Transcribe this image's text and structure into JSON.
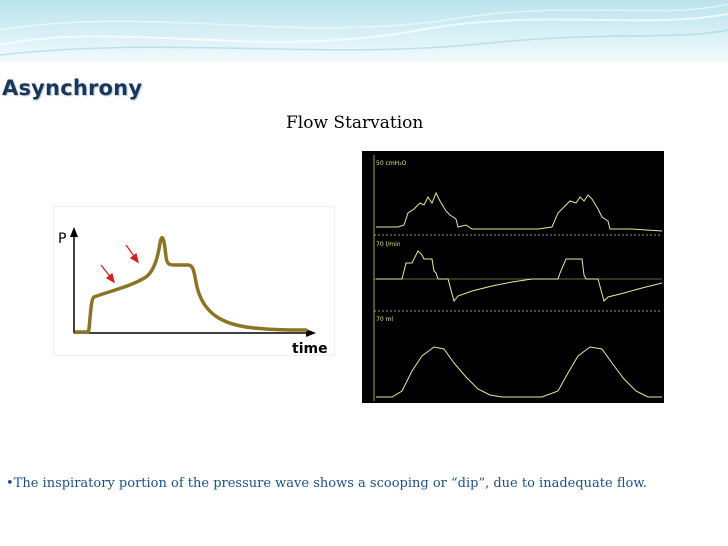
{
  "slide": {
    "title": "Asynchrony",
    "subtitle": "Flow Starvation",
    "bullet": "•The inspiratory portion of the pressure wave shows a scooping or “dip”, due to inadequate flow."
  },
  "schematic": {
    "y_axis_label": "P",
    "x_axis_label": "time",
    "curve_color": "#8a7425",
    "arrow_color": "#d62020"
  },
  "monitor": {
    "background": "#000000",
    "trace_color": "#e8ea9a",
    "channels": [
      {
        "name": "pressure",
        "scale_label": "50  cmH₂O"
      },
      {
        "name": "flow",
        "scale_label": "70  l/min"
      },
      {
        "name": "volume",
        "scale_label": "70  ml"
      }
    ]
  },
  "colors": {
    "title": "#17375e",
    "body_text": "#1f4f82",
    "header_band": "#c6e9f0"
  }
}
